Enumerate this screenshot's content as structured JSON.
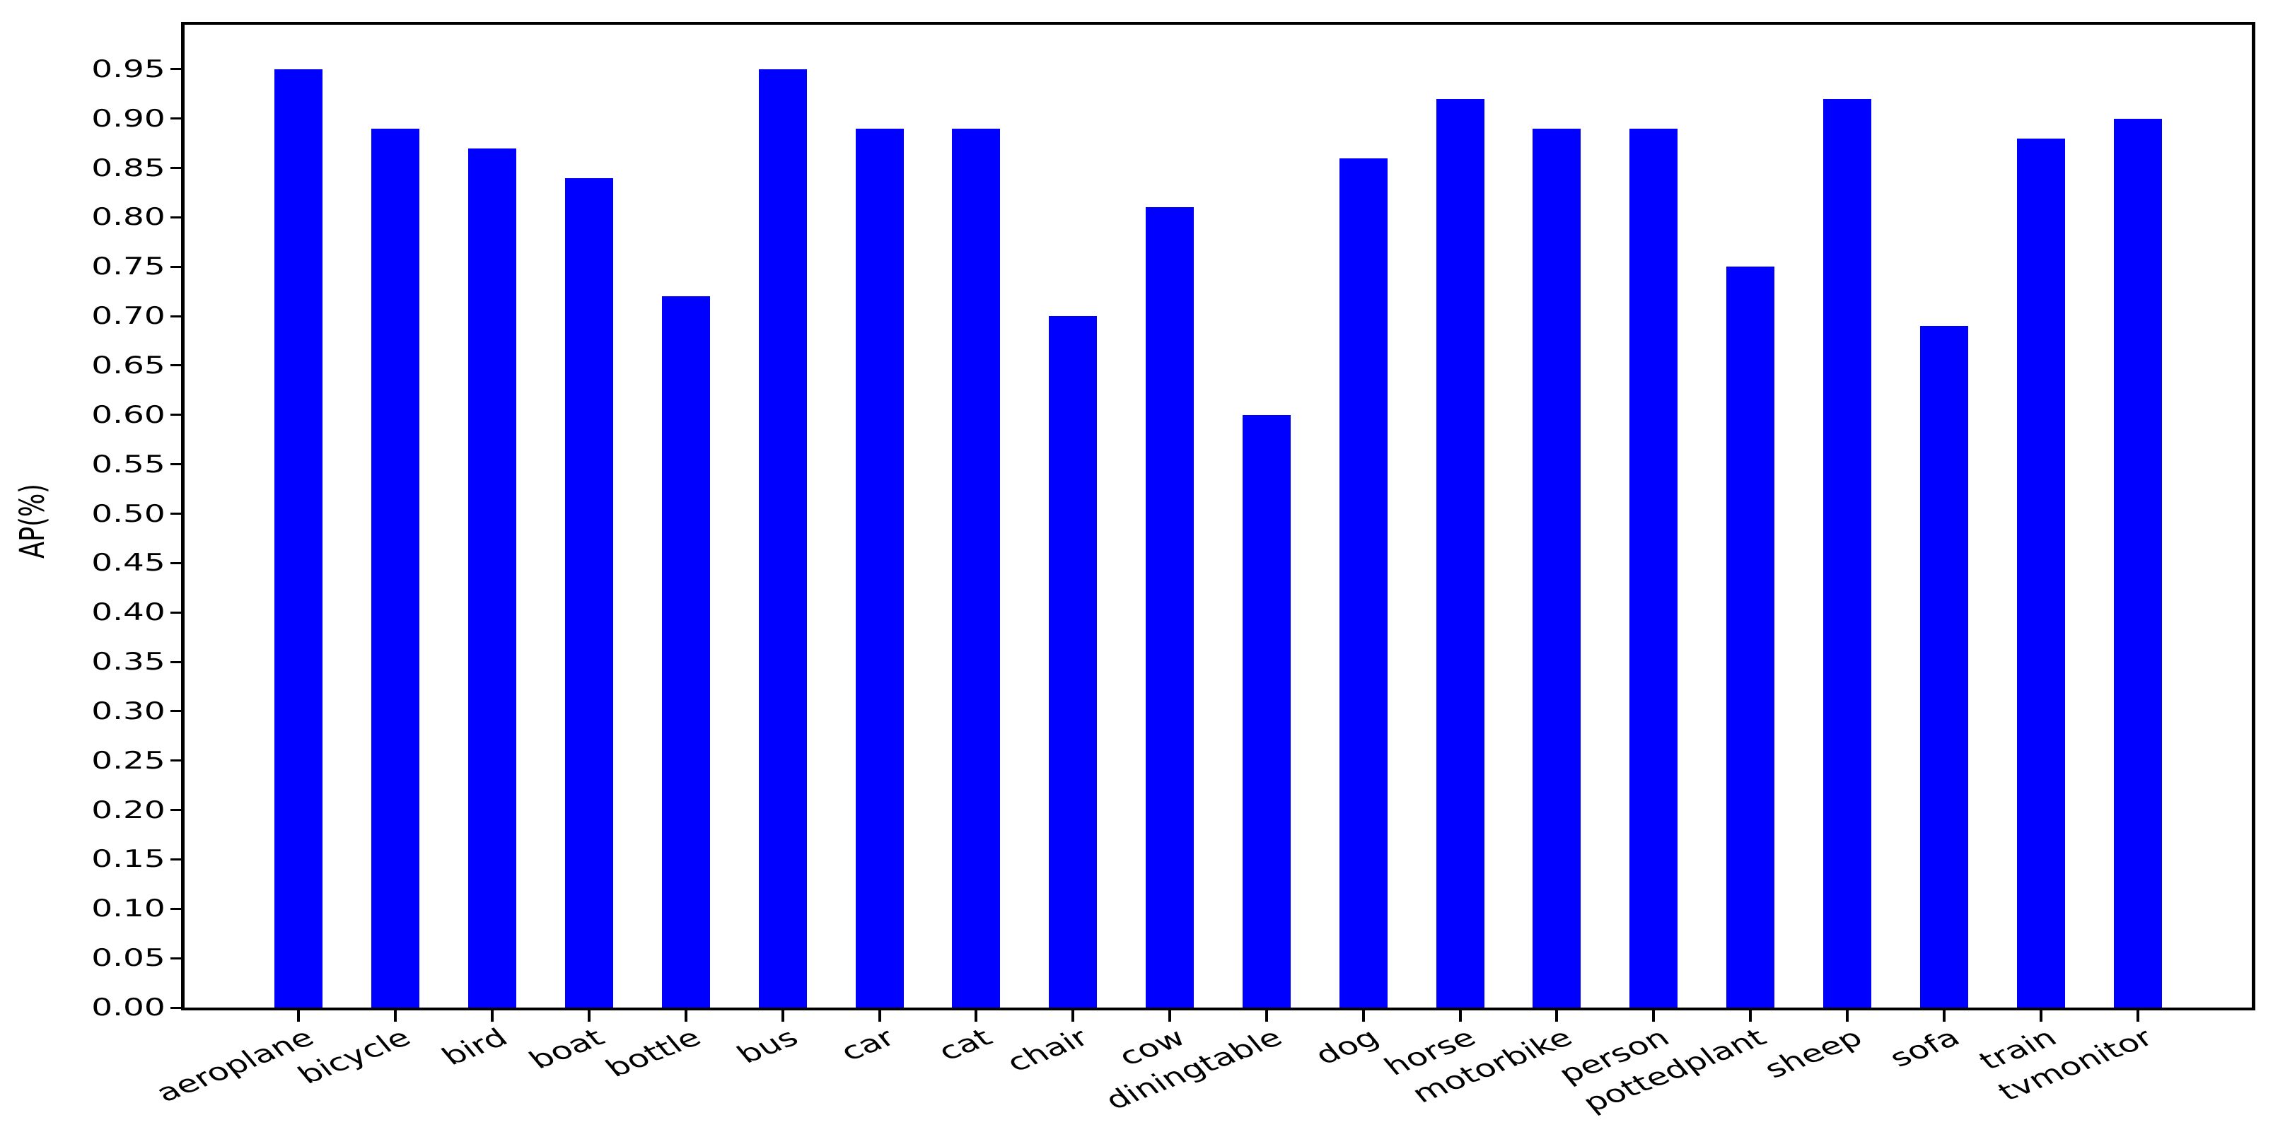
{
  "figure": {
    "background": "#ffffff"
  },
  "chart_data": {
    "type": "bar",
    "title": "",
    "xlabel": "",
    "ylabel": "AP(%)",
    "categories": [
      "aeroplane",
      "bicycle",
      "bird",
      "boat",
      "bottle",
      "bus",
      "car",
      "cat",
      "chair",
      "cow",
      "diningtable",
      "dog",
      "horse",
      "motorbike",
      "person",
      "pottedplant",
      "sheep",
      "sofa",
      "train",
      "tvmonitor"
    ],
    "values": [
      0.95,
      0.89,
      0.87,
      0.84,
      0.72,
      0.95,
      0.89,
      0.89,
      0.7,
      0.81,
      0.6,
      0.86,
      0.92,
      0.89,
      0.89,
      0.75,
      0.92,
      0.69,
      0.88,
      0.9
    ],
    "ytick_labels": [
      "0.00",
      "0.05",
      "0.10",
      "0.15",
      "0.20",
      "0.25",
      "0.30",
      "0.35",
      "0.40",
      "0.45",
      "0.50",
      "0.55",
      "0.60",
      "0.65",
      "0.70",
      "0.75",
      "0.80",
      "0.85",
      "0.90",
      "0.95"
    ],
    "ylim": [
      0.0,
      1.0
    ],
    "grid": false,
    "legend": null,
    "bar_color": "#0000ff",
    "axis_color": "#000000",
    "xtick_rotation_deg": 30
  }
}
